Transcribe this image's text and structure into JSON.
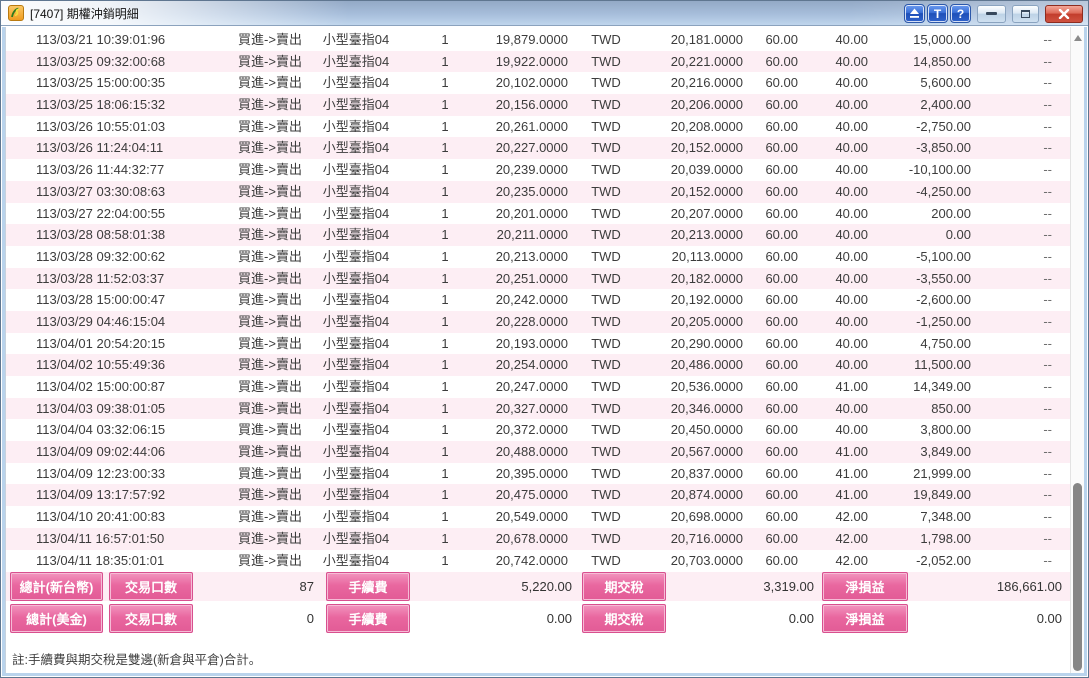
{
  "window": {
    "title": "[7407] 期權沖銷明細",
    "controls": {
      "pin_label": "eject-triangle",
      "t_label": "T",
      "help_label": "?"
    }
  },
  "colors": {
    "accent_pink": "#e9679f",
    "row_stripe_pink": "#fdeef4",
    "titlebar_blue": "#a7bedb",
    "close_red": "#c23d2c"
  },
  "table": {
    "rows": [
      {
        "time": "113/03/21 10:39:01:96",
        "action": "買進->賣出",
        "contract": "小型臺指04",
        "qty": "1",
        "open_price": "19,879.0000",
        "currency": "TWD",
        "close_price": "20,181.0000",
        "fee": "60.00",
        "tax": "40.00",
        "pnl": "15,000.00",
        "extra": "--"
      },
      {
        "time": "113/03/25 09:32:00:68",
        "action": "買進->賣出",
        "contract": "小型臺指04",
        "qty": "1",
        "open_price": "19,922.0000",
        "currency": "TWD",
        "close_price": "20,221.0000",
        "fee": "60.00",
        "tax": "40.00",
        "pnl": "14,850.00",
        "extra": "--"
      },
      {
        "time": "113/03/25 15:00:00:35",
        "action": "買進->賣出",
        "contract": "小型臺指04",
        "qty": "1",
        "open_price": "20,102.0000",
        "currency": "TWD",
        "close_price": "20,216.0000",
        "fee": "60.00",
        "tax": "40.00",
        "pnl": "5,600.00",
        "extra": "--"
      },
      {
        "time": "113/03/25 18:06:15:32",
        "action": "買進->賣出",
        "contract": "小型臺指04",
        "qty": "1",
        "open_price": "20,156.0000",
        "currency": "TWD",
        "close_price": "20,206.0000",
        "fee": "60.00",
        "tax": "40.00",
        "pnl": "2,400.00",
        "extra": "--"
      },
      {
        "time": "113/03/26 10:55:01:03",
        "action": "買進->賣出",
        "contract": "小型臺指04",
        "qty": "1",
        "open_price": "20,261.0000",
        "currency": "TWD",
        "close_price": "20,208.0000",
        "fee": "60.00",
        "tax": "40.00",
        "pnl": "-2,750.00",
        "extra": "--"
      },
      {
        "time": "113/03/26 11:24:04:11",
        "action": "買進->賣出",
        "contract": "小型臺指04",
        "qty": "1",
        "open_price": "20,227.0000",
        "currency": "TWD",
        "close_price": "20,152.0000",
        "fee": "60.00",
        "tax": "40.00",
        "pnl": "-3,850.00",
        "extra": "--"
      },
      {
        "time": "113/03/26 11:44:32:77",
        "action": "買進->賣出",
        "contract": "小型臺指04",
        "qty": "1",
        "open_price": "20,239.0000",
        "currency": "TWD",
        "close_price": "20,039.0000",
        "fee": "60.00",
        "tax": "40.00",
        "pnl": "-10,100.00",
        "extra": "--"
      },
      {
        "time": "113/03/27 03:30:08:63",
        "action": "買進->賣出",
        "contract": "小型臺指04",
        "qty": "1",
        "open_price": "20,235.0000",
        "currency": "TWD",
        "close_price": "20,152.0000",
        "fee": "60.00",
        "tax": "40.00",
        "pnl": "-4,250.00",
        "extra": "--"
      },
      {
        "time": "113/03/27 22:04:00:55",
        "action": "買進->賣出",
        "contract": "小型臺指04",
        "qty": "1",
        "open_price": "20,201.0000",
        "currency": "TWD",
        "close_price": "20,207.0000",
        "fee": "60.00",
        "tax": "40.00",
        "pnl": "200.00",
        "extra": "--"
      },
      {
        "time": "113/03/28 08:58:01:38",
        "action": "買進->賣出",
        "contract": "小型臺指04",
        "qty": "1",
        "open_price": "20,211.0000",
        "currency": "TWD",
        "close_price": "20,213.0000",
        "fee": "60.00",
        "tax": "40.00",
        "pnl": "0.00",
        "extra": "--"
      },
      {
        "time": "113/03/28 09:32:00:62",
        "action": "買進->賣出",
        "contract": "小型臺指04",
        "qty": "1",
        "open_price": "20,213.0000",
        "currency": "TWD",
        "close_price": "20,113.0000",
        "fee": "60.00",
        "tax": "40.00",
        "pnl": "-5,100.00",
        "extra": "--"
      },
      {
        "time": "113/03/28 11:52:03:37",
        "action": "買進->賣出",
        "contract": "小型臺指04",
        "qty": "1",
        "open_price": "20,251.0000",
        "currency": "TWD",
        "close_price": "20,182.0000",
        "fee": "60.00",
        "tax": "40.00",
        "pnl": "-3,550.00",
        "extra": "--"
      },
      {
        "time": "113/03/28 15:00:00:47",
        "action": "買進->賣出",
        "contract": "小型臺指04",
        "qty": "1",
        "open_price": "20,242.0000",
        "currency": "TWD",
        "close_price": "20,192.0000",
        "fee": "60.00",
        "tax": "40.00",
        "pnl": "-2,600.00",
        "extra": "--"
      },
      {
        "time": "113/03/29 04:46:15:04",
        "action": "買進->賣出",
        "contract": "小型臺指04",
        "qty": "1",
        "open_price": "20,228.0000",
        "currency": "TWD",
        "close_price": "20,205.0000",
        "fee": "60.00",
        "tax": "40.00",
        "pnl": "-1,250.00",
        "extra": "--"
      },
      {
        "time": "113/04/01 20:54:20:15",
        "action": "買進->賣出",
        "contract": "小型臺指04",
        "qty": "1",
        "open_price": "20,193.0000",
        "currency": "TWD",
        "close_price": "20,290.0000",
        "fee": "60.00",
        "tax": "40.00",
        "pnl": "4,750.00",
        "extra": "--"
      },
      {
        "time": "113/04/02 10:55:49:36",
        "action": "買進->賣出",
        "contract": "小型臺指04",
        "qty": "1",
        "open_price": "20,254.0000",
        "currency": "TWD",
        "close_price": "20,486.0000",
        "fee": "60.00",
        "tax": "40.00",
        "pnl": "11,500.00",
        "extra": "--"
      },
      {
        "time": "113/04/02 15:00:00:87",
        "action": "買進->賣出",
        "contract": "小型臺指04",
        "qty": "1",
        "open_price": "20,247.0000",
        "currency": "TWD",
        "close_price": "20,536.0000",
        "fee": "60.00",
        "tax": "41.00",
        "pnl": "14,349.00",
        "extra": "--"
      },
      {
        "time": "113/04/03 09:38:01:05",
        "action": "買進->賣出",
        "contract": "小型臺指04",
        "qty": "1",
        "open_price": "20,327.0000",
        "currency": "TWD",
        "close_price": "20,346.0000",
        "fee": "60.00",
        "tax": "40.00",
        "pnl": "850.00",
        "extra": "--"
      },
      {
        "time": "113/04/04 03:32:06:15",
        "action": "買進->賣出",
        "contract": "小型臺指04",
        "qty": "1",
        "open_price": "20,372.0000",
        "currency": "TWD",
        "close_price": "20,450.0000",
        "fee": "60.00",
        "tax": "40.00",
        "pnl": "3,800.00",
        "extra": "--"
      },
      {
        "time": "113/04/09 09:02:44:06",
        "action": "買進->賣出",
        "contract": "小型臺指04",
        "qty": "1",
        "open_price": "20,488.0000",
        "currency": "TWD",
        "close_price": "20,567.0000",
        "fee": "60.00",
        "tax": "41.00",
        "pnl": "3,849.00",
        "extra": "--"
      },
      {
        "time": "113/04/09 12:23:00:33",
        "action": "買進->賣出",
        "contract": "小型臺指04",
        "qty": "1",
        "open_price": "20,395.0000",
        "currency": "TWD",
        "close_price": "20,837.0000",
        "fee": "60.00",
        "tax": "41.00",
        "pnl": "21,999.00",
        "extra": "--"
      },
      {
        "time": "113/04/09 13:17:57:92",
        "action": "買進->賣出",
        "contract": "小型臺指04",
        "qty": "1",
        "open_price": "20,475.0000",
        "currency": "TWD",
        "close_price": "20,874.0000",
        "fee": "60.00",
        "tax": "41.00",
        "pnl": "19,849.00",
        "extra": "--"
      },
      {
        "time": "113/04/10 20:41:00:83",
        "action": "買進->賣出",
        "contract": "小型臺指04",
        "qty": "1",
        "open_price": "20,549.0000",
        "currency": "TWD",
        "close_price": "20,698.0000",
        "fee": "60.00",
        "tax": "42.00",
        "pnl": "7,348.00",
        "extra": "--"
      },
      {
        "time": "113/04/11 16:57:01:50",
        "action": "買進->賣出",
        "contract": "小型臺指04",
        "qty": "1",
        "open_price": "20,678.0000",
        "currency": "TWD",
        "close_price": "20,716.0000",
        "fee": "60.00",
        "tax": "42.00",
        "pnl": "1,798.00",
        "extra": "--"
      },
      {
        "time": "113/04/11 18:35:01:01",
        "action": "買進->賣出",
        "contract": "小型臺指04",
        "qty": "1",
        "open_price": "20,742.0000",
        "currency": "TWD",
        "close_price": "20,703.0000",
        "fee": "60.00",
        "tax": "42.00",
        "pnl": "-2,052.00",
        "extra": "--"
      }
    ]
  },
  "summary": {
    "rows": [
      {
        "group_label": "總計(新台幣)",
        "lots_label": "交易口數",
        "lots_value": "87",
        "fee_label": "手續費",
        "fee_value": "5,220.00",
        "tax_label": "期交稅",
        "tax_value": "3,319.00",
        "pnl_label": "淨損益",
        "pnl_value": "186,661.00"
      },
      {
        "group_label": "總計(美金)",
        "lots_label": "交易口數",
        "lots_value": "0",
        "fee_label": "手續費",
        "fee_value": "0.00",
        "tax_label": "期交稅",
        "tax_value": "0.00",
        "pnl_label": "淨損益",
        "pnl_value": "0.00"
      }
    ]
  },
  "note": "註:手續費與期交稅是雙邊(新倉與平倉)合計。"
}
